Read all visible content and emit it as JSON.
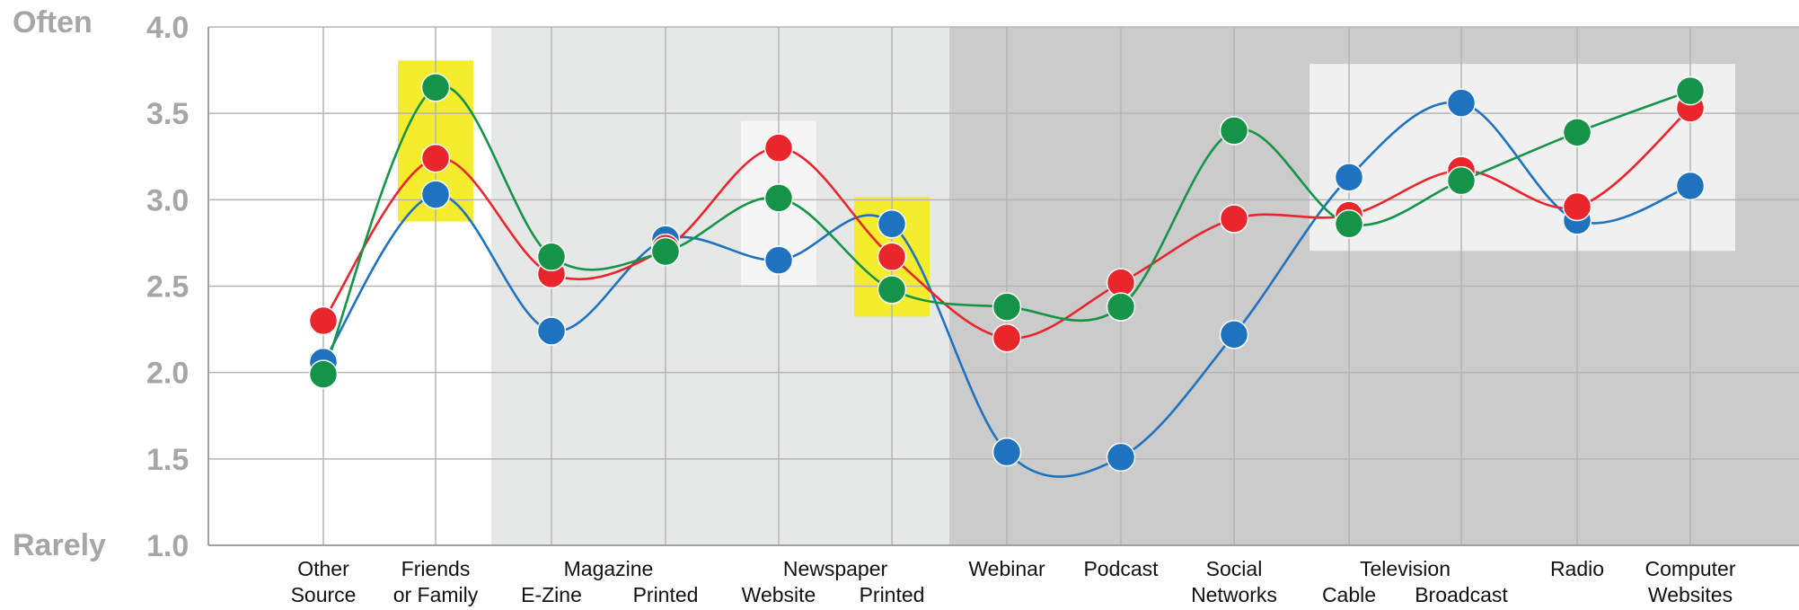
{
  "chart_data": {
    "type": "line",
    "y_words": {
      "top": "Often",
      "bottom": "Rarely"
    },
    "y_ticks": [
      "1.0",
      "1.5",
      "2.0",
      "2.5",
      "3.0",
      "3.5",
      "4.0"
    ],
    "ylim": [
      1.0,
      4.0
    ],
    "grid": true,
    "categories": [
      {
        "line1": "Other",
        "line2": "Source"
      },
      {
        "line1": "Friends",
        "line2": "or Family"
      },
      {
        "line1": "",
        "line2": "E-Zine"
      },
      {
        "line1": "",
        "line2": "Printed"
      },
      {
        "line1": "",
        "line2": "Website"
      },
      {
        "line1": "",
        "line2": "Printed"
      },
      {
        "line1": "Webinar",
        "line2": ""
      },
      {
        "line1": "Podcast",
        "line2": ""
      },
      {
        "line1": "Social",
        "line2": "Networks"
      },
      {
        "line1": "",
        "line2": "Cable"
      },
      {
        "line1": "",
        "line2": "Broadcast"
      },
      {
        "line1": "Radio",
        "line2": ""
      },
      {
        "line1": "Computer",
        "line2": "Websites"
      }
    ],
    "group_labels": [
      {
        "text": "Magazine",
        "from": 2,
        "to": 3
      },
      {
        "text": "Newspaper",
        "from": 4,
        "to": 5
      },
      {
        "text": "Television",
        "from": 9,
        "to": 10
      }
    ],
    "series": [
      {
        "color": "#1f73be",
        "values": [
          2.06,
          3.03,
          2.24,
          2.77,
          2.65,
          2.86,
          1.54,
          1.51,
          2.22,
          3.13,
          3.56,
          2.88,
          3.08
        ]
      },
      {
        "color": "#e8262b",
        "values": [
          2.3,
          3.24,
          2.57,
          2.72,
          3.3,
          2.67,
          2.2,
          2.52,
          2.89,
          2.91,
          3.17,
          2.96,
          3.53
        ]
      },
      {
        "color": "#159447",
        "values": [
          1.99,
          3.65,
          2.67,
          2.7,
          3.01,
          2.48,
          2.38,
          2.38,
          3.4,
          2.86,
          3.11,
          3.39,
          3.63
        ]
      }
    ],
    "background_bands": [
      {
        "from": 2,
        "to": 5,
        "color": "#e6e7e7"
      },
      {
        "from": 6,
        "to": 12,
        "color": "#cbcbcb"
      }
    ],
    "highlights": [
      {
        "index": 1,
        "color": "#f4ed2d"
      },
      {
        "index": 4,
        "color": "#f5f5f5"
      },
      {
        "index": 5,
        "color": "#f4ed2d"
      },
      {
        "from": 9,
        "to": 12,
        "color": "#f0f0f0"
      }
    ]
  }
}
